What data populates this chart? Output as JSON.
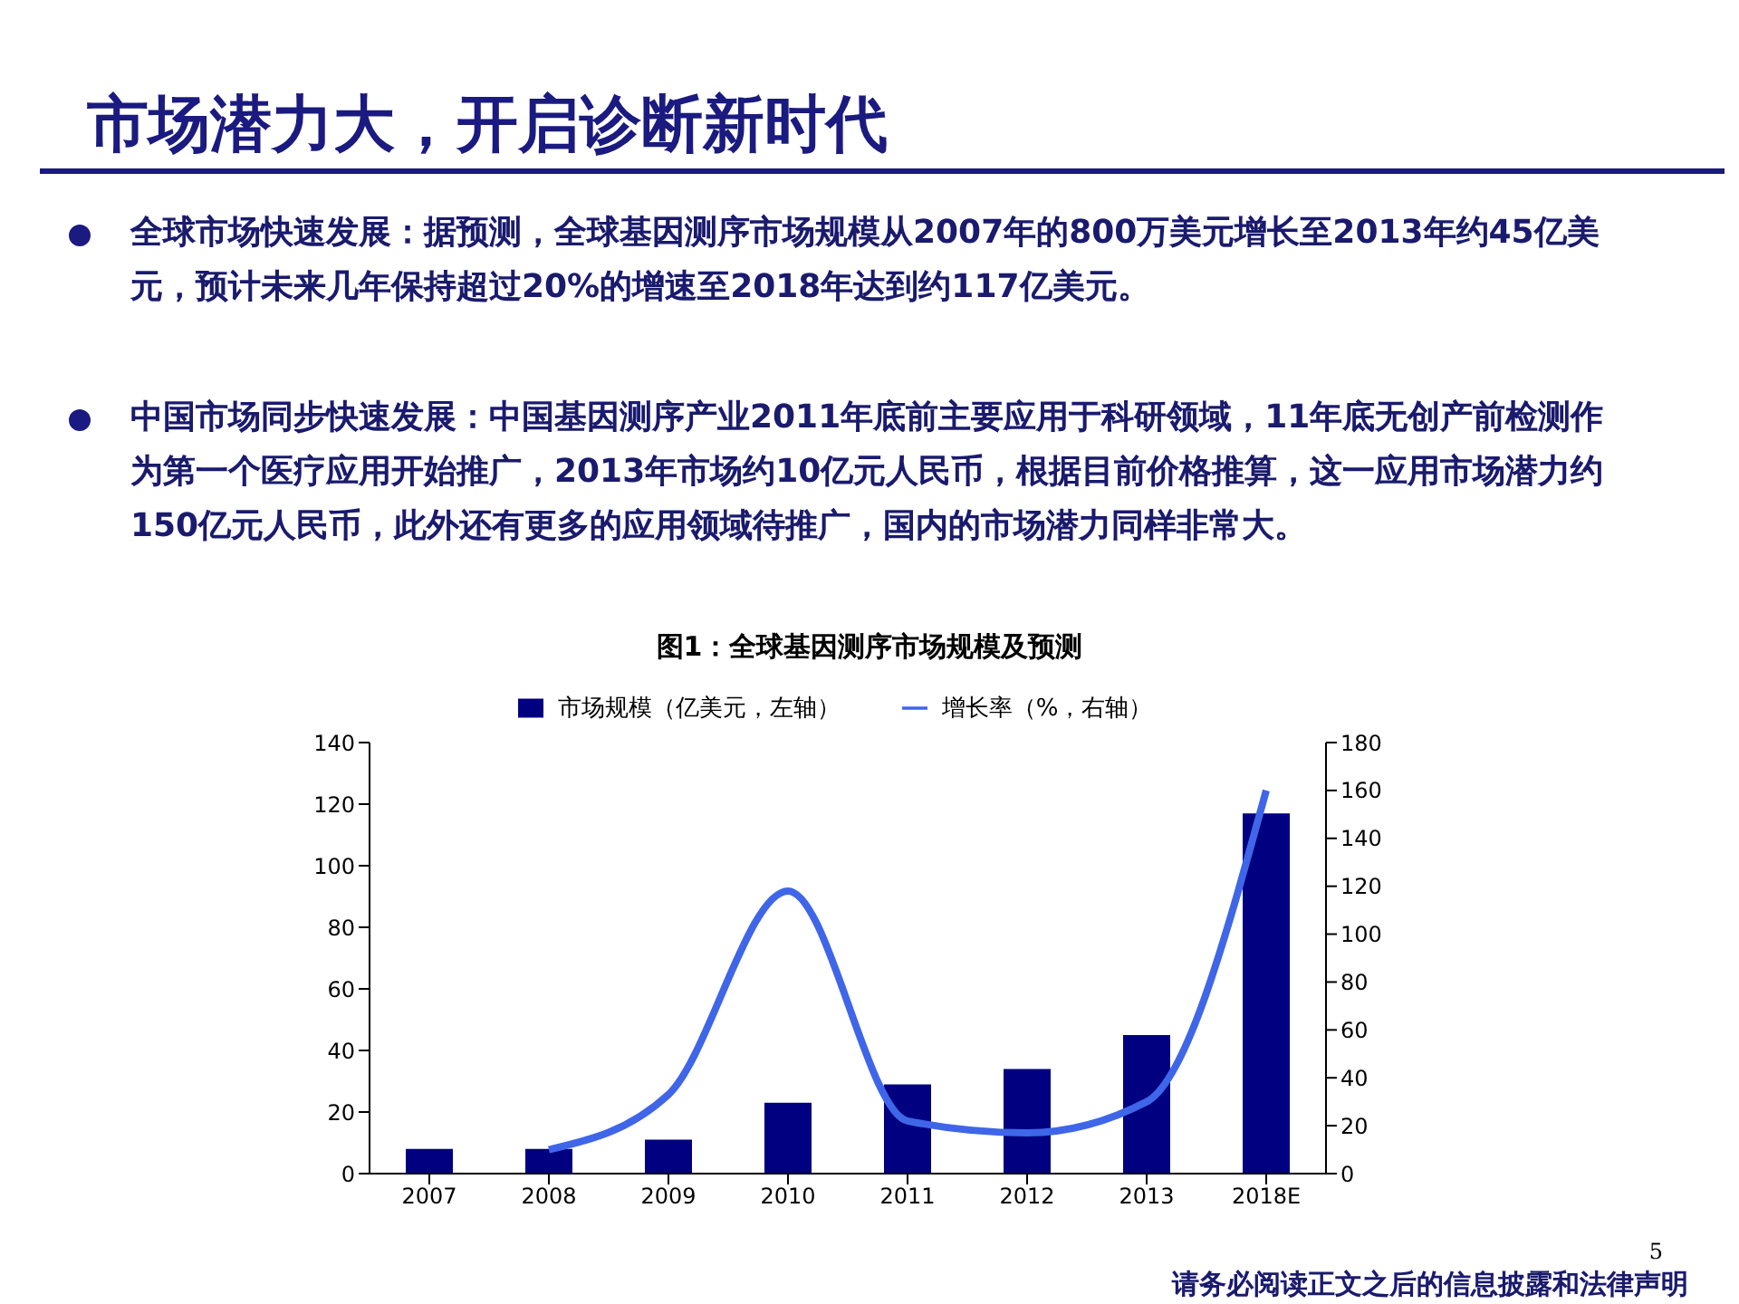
{
  "chart_data": {
    "type": "bar",
    "title": "市场潜力大，开启诊断新时代",
    "subtitle": "图1：全球基因测序市场规模及预测",
    "annotations": [
      "全球市场快速发展：据预测，全球基因测序市场规模从2007年的800万美元增长至2013年约45亿美元，预计未来几年保持超过20%的增速至2018年达到约117亿美元。",
      "中国市场同步快速发展：中国基因测序产业2011年底前主要应用于科研领域，11年底无创产前检测作为第一个医疗应用开始推广，2013年市场约10亿元人民币，根据目前价格推算，这一应用市场潜力约150亿元人民币，此外还有更多的应用领域待推广，国内的市场潜力同样非常大。",
      "请务必阅读正文之后的信息披露和法律声明",
      "5"
    ],
    "categories": [
      "2007",
      "2008",
      "2009",
      "2010",
      "2011",
      "2012",
      "2013",
      "2018E"
    ],
    "series": [
      {
        "name": "市场规模（亿美元，左轴）",
        "color": "#000080",
        "values": [
          8,
          8,
          11,
          23,
          29,
          34,
          45,
          117
        ]
      },
      {
        "name": "增长率（%，右轴）",
        "type": "line",
        "axis": "y2",
        "color": "#3f66e8",
        "values": [
          null,
          10,
          33,
          118,
          22,
          17,
          30,
          160
        ]
      }
    ],
    "ylim": [
      0,
      140
    ],
    "yticks": [
      0,
      20,
      40,
      60,
      80,
      100,
      120,
      140
    ],
    "y2lim": [
      0,
      180
    ],
    "y2ticks": [
      0,
      20,
      40,
      60,
      80,
      100,
      120,
      140,
      160,
      180
    ],
    "legend": "top",
    "grid": false,
    "marker": "none"
  }
}
